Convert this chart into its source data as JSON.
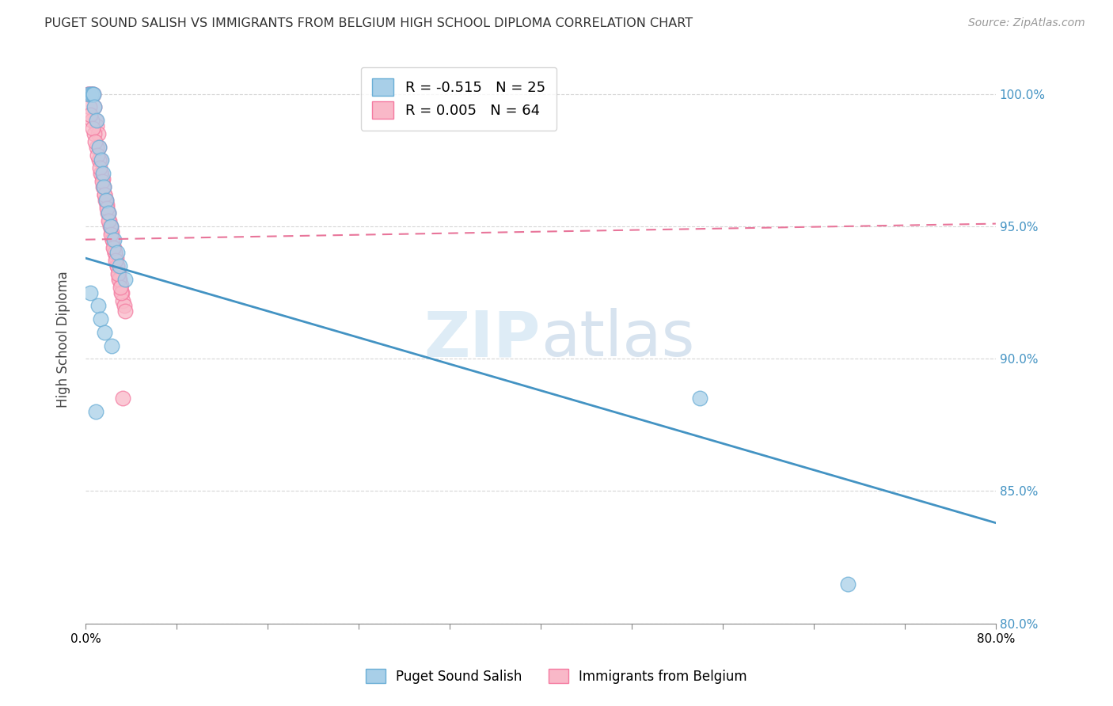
{
  "title": "PUGET SOUND SALISH VS IMMIGRANTS FROM BELGIUM HIGH SCHOOL DIPLOMA CORRELATION CHART",
  "source": "Source: ZipAtlas.com",
  "ylabel": "High School Diploma",
  "legend_label1": "Puget Sound Salish",
  "legend_label2": "Immigrants from Belgium",
  "R1": -0.515,
  "N1": 25,
  "R2": 0.005,
  "N2": 64,
  "xlim": [
    0.0,
    80.0
  ],
  "ylim": [
    80.5,
    101.5
  ],
  "yticks": [
    80.0,
    85.0,
    90.0,
    95.0,
    100.0
  ],
  "xticks": [
    0.0,
    8.0,
    16.0,
    24.0,
    32.0,
    40.0,
    48.0,
    56.0,
    64.0,
    72.0,
    80.0
  ],
  "blue_color": "#a8cfe8",
  "pink_color": "#f9b8c8",
  "blue_edge": "#6aaed6",
  "pink_edge": "#f47aa0",
  "trendline_blue": "#4393c3",
  "trendline_pink": "#e8759a",
  "blue_line_x0": 0.0,
  "blue_line_y0": 93.8,
  "blue_line_x1": 80.0,
  "blue_line_y1": 83.8,
  "pink_line_x0": 0.0,
  "pink_line_y0": 94.5,
  "pink_line_x1": 80.0,
  "pink_line_y1": 95.1,
  "blue_scatter_x": [
    0.3,
    0.5,
    0.6,
    0.7,
    0.8,
    1.0,
    1.2,
    1.4,
    1.5,
    1.6,
    1.8,
    2.0,
    2.2,
    2.5,
    2.8,
    3.0,
    3.5,
    0.4,
    1.1,
    1.3,
    1.7,
    2.3,
    0.9,
    54.0,
    67.0
  ],
  "blue_scatter_y": [
    100.0,
    100.0,
    100.0,
    100.0,
    99.5,
    99.0,
    98.0,
    97.5,
    97.0,
    96.5,
    96.0,
    95.5,
    95.0,
    94.5,
    94.0,
    93.5,
    93.0,
    92.5,
    92.0,
    91.5,
    91.0,
    90.5,
    88.0,
    88.5,
    81.5
  ],
  "pink_scatter_x": [
    0.2,
    0.3,
    0.4,
    0.5,
    0.6,
    0.7,
    0.8,
    0.9,
    1.0,
    1.1,
    1.2,
    1.3,
    1.4,
    1.5,
    1.6,
    1.7,
    1.8,
    1.9,
    2.0,
    2.1,
    2.2,
    2.3,
    2.4,
    2.5,
    2.6,
    2.7,
    2.8,
    2.9,
    3.0,
    3.1,
    3.2,
    3.3,
    3.4,
    3.5,
    0.35,
    0.55,
    0.75,
    0.95,
    1.15,
    1.35,
    1.55,
    1.75,
    1.95,
    2.15,
    2.35,
    2.55,
    2.75,
    2.95,
    3.15,
    0.45,
    0.65,
    0.85,
    1.05,
    1.25,
    1.45,
    1.65,
    1.85,
    2.05,
    2.25,
    2.45,
    2.65,
    2.85,
    3.05,
    3.25
  ],
  "pink_scatter_y": [
    100.0,
    100.0,
    100.0,
    100.0,
    100.0,
    100.0,
    99.5,
    99.0,
    98.8,
    98.5,
    98.0,
    97.5,
    97.0,
    96.8,
    96.5,
    96.2,
    96.0,
    95.8,
    95.5,
    95.2,
    95.0,
    94.8,
    94.5,
    94.2,
    94.0,
    93.8,
    93.5,
    93.2,
    93.0,
    92.8,
    92.5,
    92.2,
    92.0,
    91.8,
    99.5,
    99.0,
    98.5,
    98.0,
    97.5,
    97.0,
    96.5,
    96.0,
    95.5,
    95.0,
    94.5,
    94.0,
    93.5,
    93.0,
    92.5,
    99.2,
    98.7,
    98.2,
    97.7,
    97.2,
    96.7,
    96.2,
    95.7,
    95.2,
    94.7,
    94.2,
    93.7,
    93.2,
    92.7,
    88.5
  ]
}
